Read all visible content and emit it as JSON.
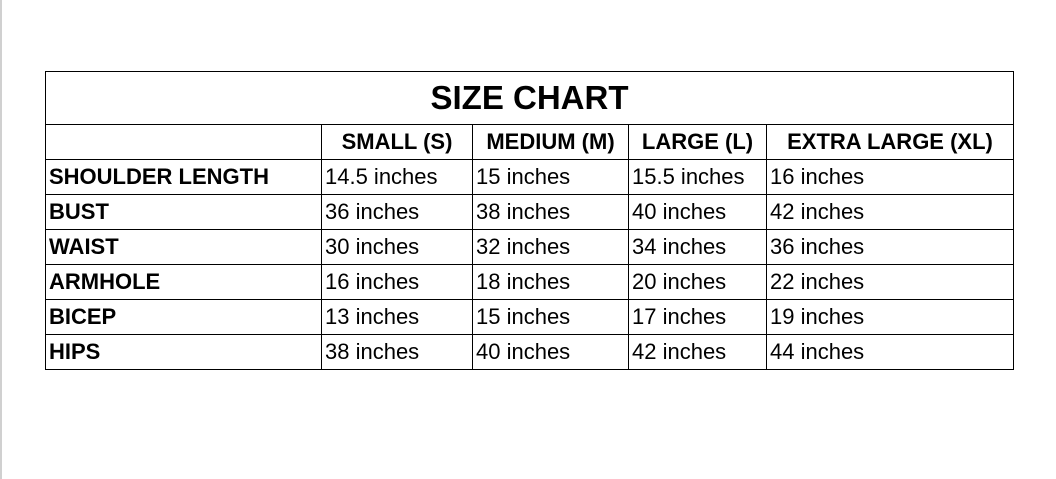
{
  "title": "SIZE CHART",
  "columns": [
    "",
    "SMALL (S)",
    "MEDIUM (M)",
    "LARGE (L)",
    "EXTRA LARGE (XL)"
  ],
  "rows": [
    {
      "label": "SHOULDER LENGTH",
      "values": [
        "14.5 inches",
        "15 inches",
        "15.5 inches",
        "16 inches"
      ]
    },
    {
      "label": "BUST",
      "values": [
        "36 inches",
        "38 inches",
        "40 inches",
        "42 inches"
      ]
    },
    {
      "label": "WAIST",
      "values": [
        "30 inches",
        "32 inches",
        "34 inches",
        "36 inches"
      ]
    },
    {
      "label": "ARMHOLE",
      "values": [
        "16 inches",
        "18 inches",
        "20 inches",
        "22 inches"
      ]
    },
    {
      "label": "BICEP",
      "values": [
        "13 inches",
        "15 inches",
        "17 inches",
        "19 inches"
      ]
    },
    {
      "label": "HIPS",
      "values": [
        "38 inches",
        "40 inches",
        "42 inches",
        "44 inches"
      ]
    }
  ]
}
